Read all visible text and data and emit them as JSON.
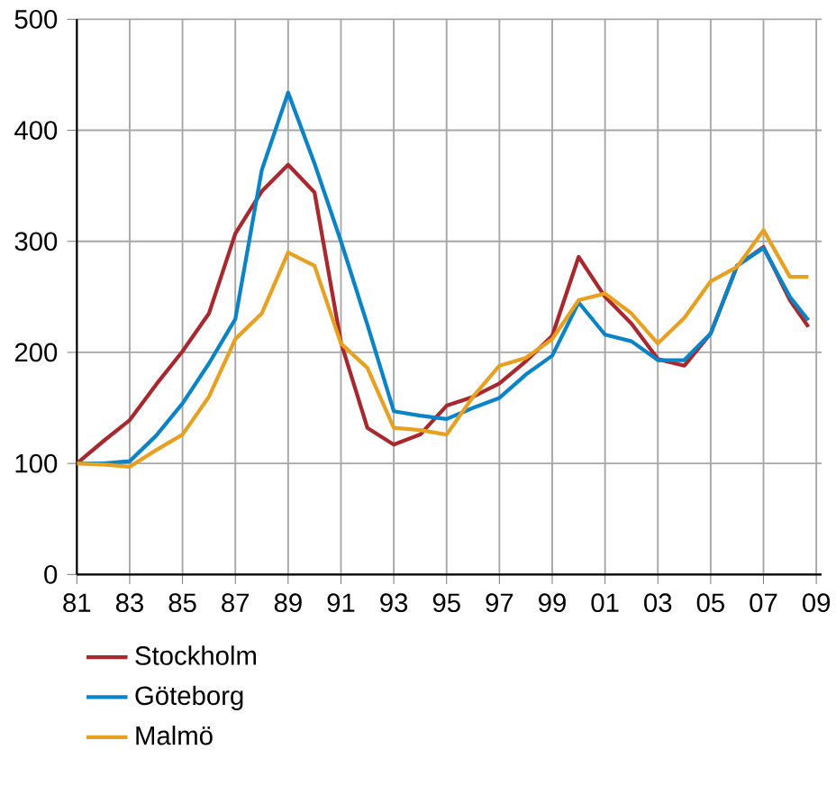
{
  "chart_data": {
    "type": "line",
    "x": [
      1981,
      1982,
      1983,
      1984,
      1985,
      1986,
      1987,
      1988,
      1989,
      1990,
      1991,
      1992,
      1993,
      1994,
      1995,
      1996,
      1997,
      1998,
      1999,
      2000,
      2001,
      2002,
      2003,
      2004,
      2005,
      2006,
      2007,
      2008,
      2008.7
    ],
    "series": [
      {
        "name": "Stockholm",
        "color": "#a8282e",
        "values": [
          100,
          120,
          139,
          171,
          201,
          235,
          307,
          345,
          369,
          344,
          209,
          132,
          117,
          126,
          152,
          160,
          172,
          192,
          215,
          286,
          250,
          226,
          194,
          188,
          217,
          278,
          295,
          247,
          223
        ]
      },
      {
        "name": "Göteborg",
        "color": "#0a84c6",
        "values": [
          100,
          100,
          102,
          125,
          154,
          190,
          230,
          364,
          434,
          370,
          300,
          225,
          147,
          143,
          140,
          150,
          159,
          180,
          197,
          245,
          216,
          210,
          193,
          193,
          217,
          278,
          294,
          250,
          229
        ]
      },
      {
        "name": "Malmö",
        "color": "#e8a020",
        "values": [
          100,
          99,
          97,
          112,
          126,
          160,
          212,
          235,
          290,
          278,
          208,
          186,
          132,
          130,
          126,
          160,
          188,
          195,
          212,
          247,
          253,
          235,
          208,
          231,
          264,
          277,
          310,
          268,
          268
        ]
      }
    ],
    "xlim": [
      1981,
      2009.2
    ],
    "xticks": [
      {
        "value": 1981,
        "label": "81"
      },
      {
        "value": 1983,
        "label": "83"
      },
      {
        "value": 1985,
        "label": "85"
      },
      {
        "value": 1987,
        "label": "87"
      },
      {
        "value": 1989,
        "label": "89"
      },
      {
        "value": 1991,
        "label": "91"
      },
      {
        "value": 1993,
        "label": "93"
      },
      {
        "value": 1995,
        "label": "95"
      },
      {
        "value": 1997,
        "label": "97"
      },
      {
        "value": 1999,
        "label": "99"
      },
      {
        "value": 2001,
        "label": "01"
      },
      {
        "value": 2003,
        "label": "03"
      },
      {
        "value": 2005,
        "label": "05"
      },
      {
        "value": 2007,
        "label": "07"
      },
      {
        "value": 2009,
        "label": "09"
      }
    ],
    "ylim": [
      0,
      500
    ],
    "yticks": [
      0,
      100,
      200,
      300,
      400,
      500
    ],
    "grid": true,
    "legend": "bottom left",
    "marker": "none",
    "line_style": "solid"
  }
}
